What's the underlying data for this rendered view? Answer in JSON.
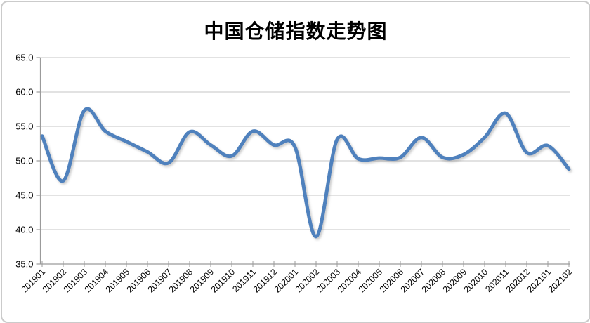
{
  "chart_data": {
    "type": "line",
    "title": "中国仓储指数走势图",
    "series_name": "中国仓储指数",
    "categories": [
      "201901",
      "201902",
      "201903",
      "201904",
      "201905",
      "201906",
      "201907",
      "201908",
      "201909",
      "201910",
      "201911",
      "201912",
      "202001",
      "202002",
      "202003",
      "202004",
      "202005",
      "202006",
      "202007",
      "202008",
      "202009",
      "202010",
      "202011",
      "202012",
      "202101",
      "202102"
    ],
    "values": [
      53.6,
      47.1,
      57.3,
      54.3,
      52.8,
      51.3,
      49.7,
      54.2,
      52.3,
      50.7,
      54.3,
      52.3,
      52.0,
      39.0,
      53.1,
      50.3,
      50.4,
      50.5,
      53.4,
      50.5,
      50.9,
      53.4,
      56.9,
      51.2,
      52.2,
      48.8
    ],
    "xlabel": "",
    "ylabel": "",
    "ylim": [
      35.0,
      65.0
    ],
    "ytick_step": 5.0,
    "ytick_labels": [
      "65.0",
      "60.0",
      "55.0",
      "50.0",
      "45.0",
      "40.0",
      "35.0"
    ],
    "grid": true,
    "legend_position": "none",
    "line_smooth": true,
    "line_color": "#4F81BD",
    "gridline_color": "#c6c6c6",
    "axis_color": "#9b9b9b",
    "label_color": "#000000"
  }
}
